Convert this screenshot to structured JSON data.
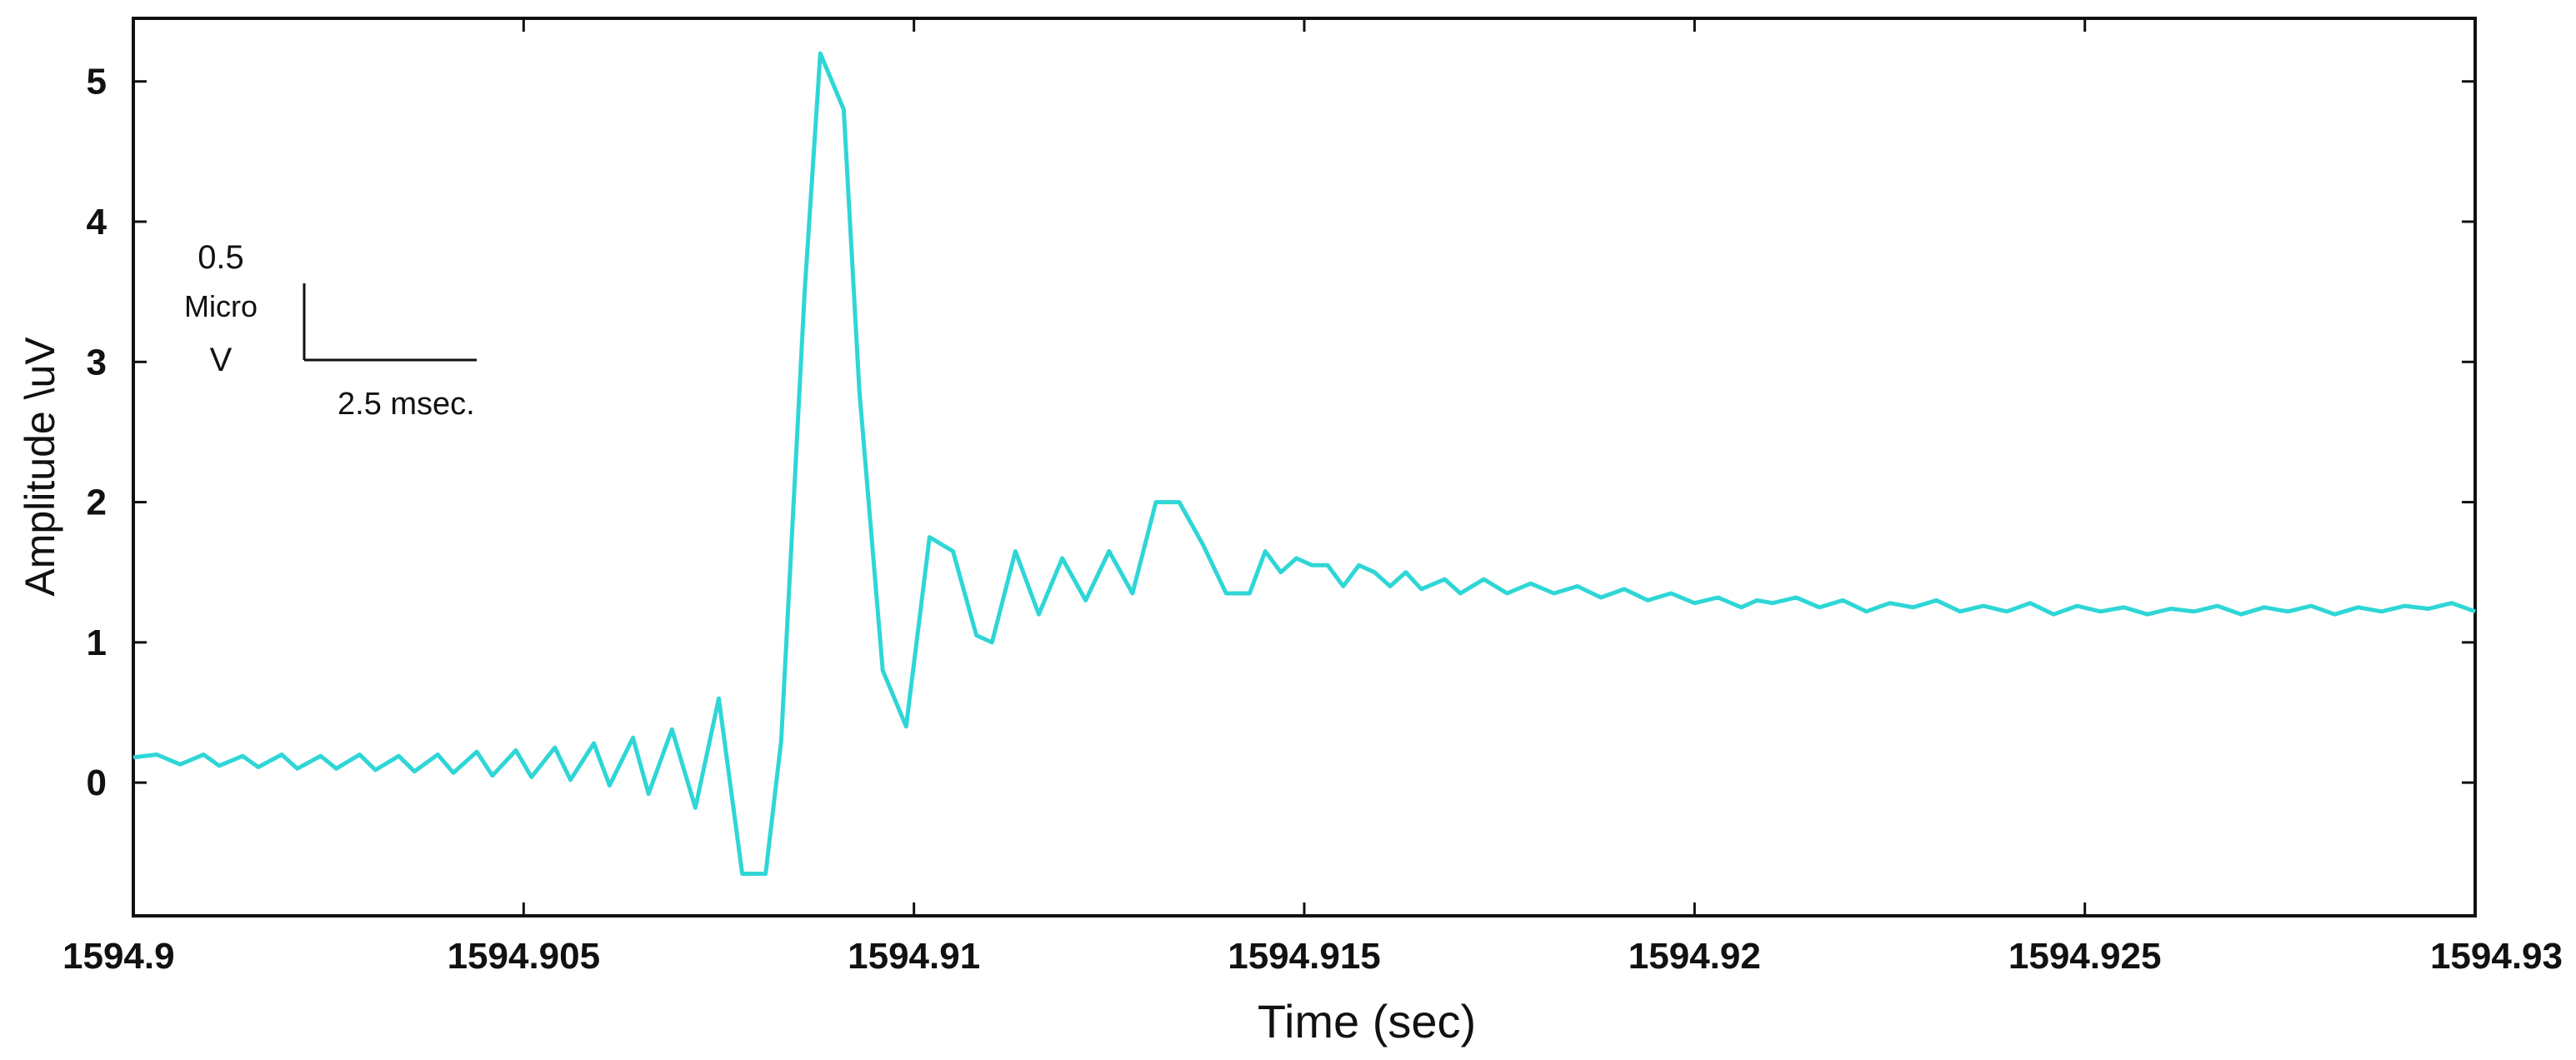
{
  "chart_data": {
    "type": "line",
    "xlabel": "Time (sec)",
    "ylabel": "Amplitude \\uV",
    "xlim": [
      1594.9,
      1594.93
    ],
    "ylim": [
      -0.95,
      5.45
    ],
    "x_ticks": [
      1594.9,
      1594.905,
      1594.91,
      1594.915,
      1594.92,
      1594.925,
      1594.93
    ],
    "x_tick_labels": [
      "1594.9",
      "1594.905",
      "1594.91",
      "1594.915",
      "1594.92",
      "1594.925",
      "1594.93"
    ],
    "y_ticks": [
      0,
      1,
      2,
      3,
      4,
      5
    ],
    "y_tick_labels": [
      "0",
      "1",
      "2",
      "3",
      "4",
      "5"
    ],
    "grid": false,
    "line_color": "#2fd6d6",
    "scale_bar": {
      "amplitude_value": "0.5",
      "amplitude_unit_1": "Micro",
      "amplitude_unit_2": "V",
      "time_label": "2.5 msec."
    },
    "series": [
      {
        "x": [
          1594.9,
          1594.9003,
          1594.9006,
          1594.9009,
          1594.9011,
          1594.9014,
          1594.9016,
          1594.9019,
          1594.9021,
          1594.9024,
          1594.9026,
          1594.9029,
          1594.9031,
          1594.9034,
          1594.9036,
          1594.9039,
          1594.9041,
          1594.9044,
          1594.9046,
          1594.9049,
          1594.9051,
          1594.9054,
          1594.9056,
          1594.9059,
          1594.9061,
          1594.9064,
          1594.9066,
          1594.9069,
          1594.9072,
          1594.9075,
          1594.9078,
          1594.9081,
          1594.9083,
          1594.9086,
          1594.9088,
          1594.9091,
          1594.9093,
          1594.9096,
          1594.9099,
          1594.9102,
          1594.9105,
          1594.9108,
          1594.911,
          1594.9113,
          1594.9116,
          1594.9119,
          1594.9122,
          1594.9125,
          1594.9128,
          1594.9131,
          1594.9134,
          1594.9137,
          1594.914,
          1594.9143,
          1594.9145,
          1594.9147,
          1594.9149,
          1594.9151,
          1594.9153,
          1594.9155,
          1594.9157,
          1594.9159,
          1594.9161,
          1594.9163,
          1594.9165,
          1594.9168,
          1594.917,
          1594.9173,
          1594.9176,
          1594.9179,
          1594.9182,
          1594.9185,
          1594.9188,
          1594.9191,
          1594.9194,
          1594.9197,
          1594.92,
          1594.9203,
          1594.9206,
          1594.9208,
          1594.921,
          1594.9213,
          1594.9216,
          1594.9219,
          1594.9222,
          1594.9225,
          1594.9228,
          1594.9231,
          1594.9234,
          1594.9237,
          1594.924,
          1594.9243,
          1594.9246,
          1594.9249,
          1594.9252,
          1594.9255,
          1594.9258,
          1594.9261,
          1594.9264,
          1594.9267,
          1594.927,
          1594.9273,
          1594.9276,
          1594.9279,
          1594.9282,
          1594.9285,
          1594.9288,
          1594.9291,
          1594.9294,
          1594.9297,
          1594.93
        ],
        "y": [
          0.18,
          0.2,
          0.13,
          0.2,
          0.12,
          0.19,
          0.11,
          0.2,
          0.1,
          0.19,
          0.1,
          0.2,
          0.09,
          0.19,
          0.08,
          0.2,
          0.07,
          0.22,
          0.05,
          0.23,
          0.04,
          0.25,
          0.02,
          0.28,
          -0.02,
          0.32,
          -0.08,
          0.38,
          -0.18,
          0.6,
          -0.65,
          -0.65,
          0.3,
          3.5,
          5.2,
          4.8,
          2.8,
          0.8,
          0.4,
          1.75,
          1.65,
          1.05,
          1.0,
          1.65,
          1.2,
          1.6,
          1.3,
          1.65,
          1.35,
          2.0,
          2.0,
          1.7,
          1.35,
          1.35,
          1.65,
          1.5,
          1.6,
          1.55,
          1.55,
          1.4,
          1.55,
          1.5,
          1.4,
          1.5,
          1.38,
          1.45,
          1.35,
          1.45,
          1.35,
          1.42,
          1.35,
          1.4,
          1.32,
          1.38,
          1.3,
          1.35,
          1.28,
          1.32,
          1.25,
          1.3,
          1.28,
          1.32,
          1.25,
          1.3,
          1.22,
          1.28,
          1.25,
          1.3,
          1.22,
          1.26,
          1.22,
          1.28,
          1.2,
          1.26,
          1.22,
          1.25,
          1.2,
          1.24,
          1.22,
          1.26,
          1.2,
          1.25,
          1.22,
          1.26,
          1.2,
          1.25,
          1.22,
          1.26,
          1.24,
          1.28,
          1.22
        ]
      }
    ]
  }
}
